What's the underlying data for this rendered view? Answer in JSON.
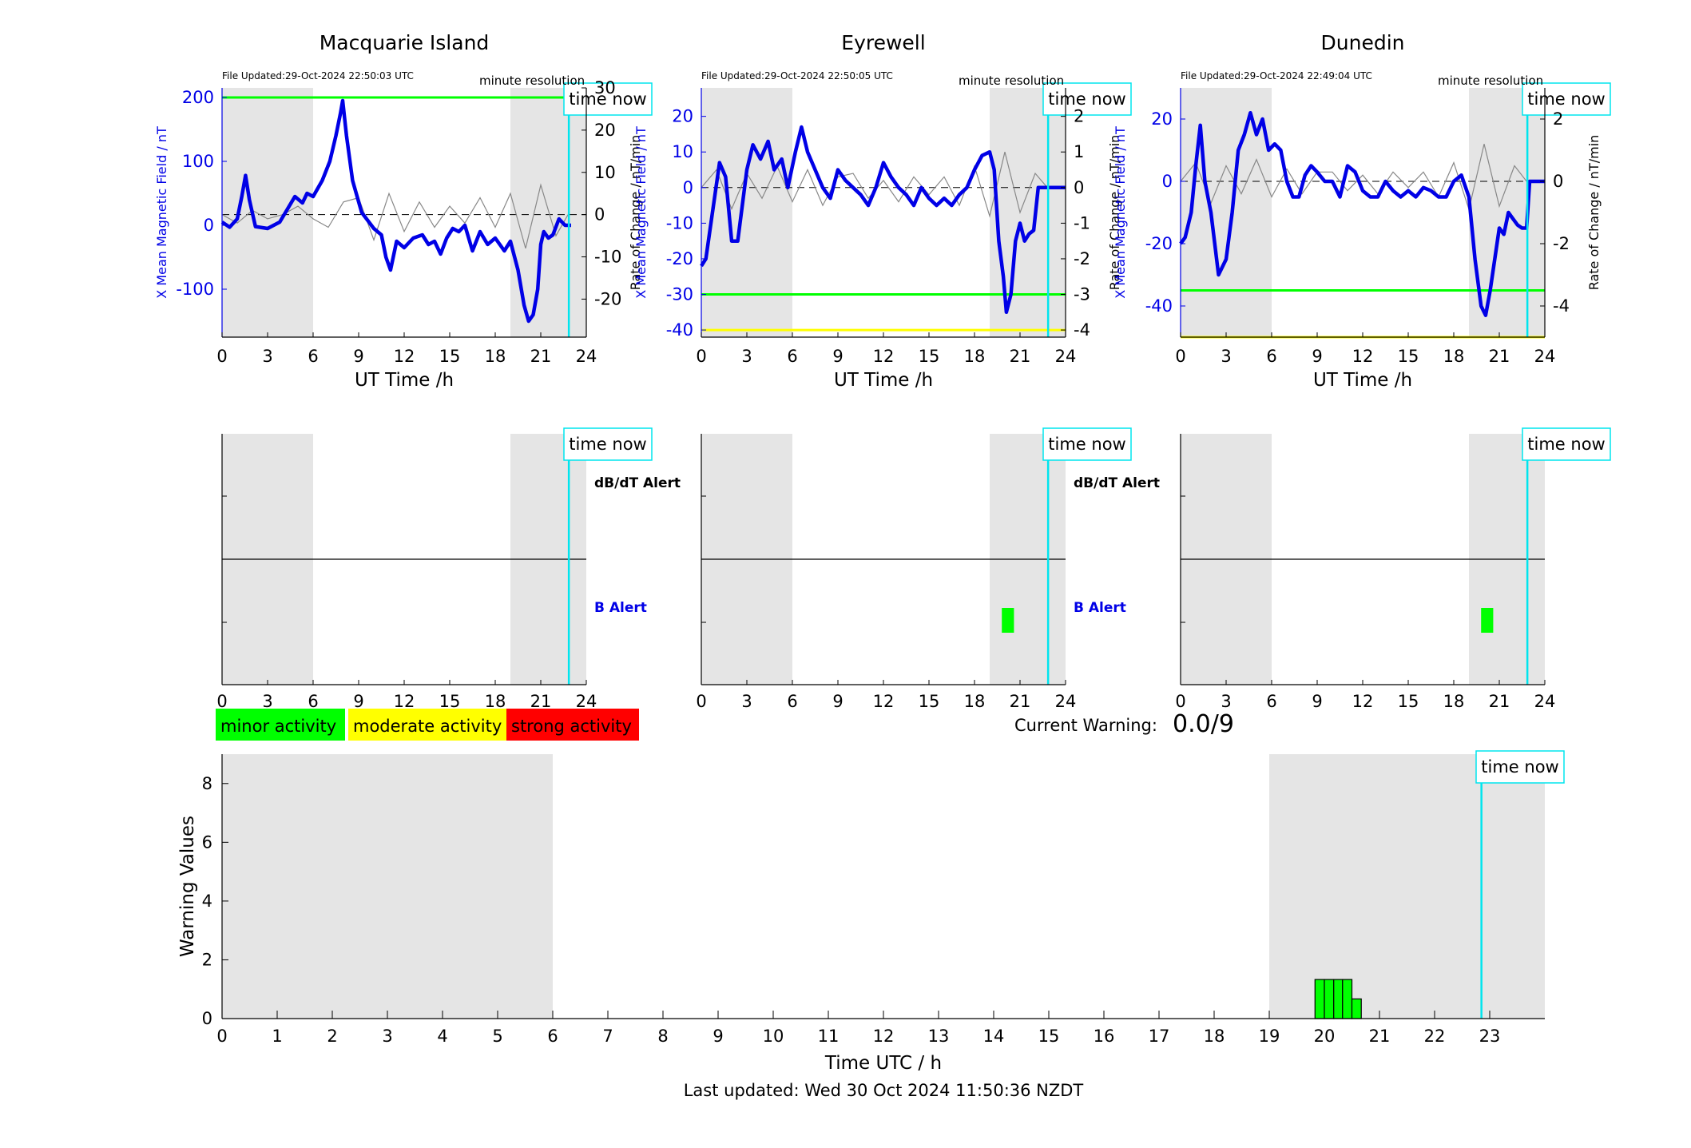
{
  "footer": {
    "last_updated": "Last updated: Wed 30 Oct 2024 11:50:36 NZDT"
  },
  "current_warning": {
    "label": "Current Warning:",
    "value": "0.0/9"
  },
  "legend": [
    {
      "label": "minor activity",
      "color": "#00ff00"
    },
    {
      "label": "moderate activity",
      "color": "#ffff00"
    },
    {
      "label": "strong activity",
      "color": "#ff0000"
    }
  ],
  "colors": {
    "field_line": "#0000e6",
    "rate_line": "#888888",
    "time_now": "#00e5ee",
    "shade": "#e5e5e5",
    "minor": "#00ff00",
    "moderate": "#ffff00"
  },
  "chart_data": [
    {
      "type": "line",
      "station": "Macquarie Island",
      "title": "Macquarie Island",
      "file_updated": "File Updated:29-Oct-2024 22:50:03 UTC",
      "resolution": "minute resolution",
      "xlabel": "UT Time /h",
      "ylabel_left": "X Mean Magnetic Field / nT",
      "ylabel_right": "Rate of Change / nT/min",
      "xlim": [
        0,
        24
      ],
      "xticks": [
        0,
        3,
        6,
        9,
        12,
        15,
        18,
        21,
        24
      ],
      "ylim_left": [
        -175,
        215
      ],
      "yticks_left": [
        -100,
        0,
        100,
        200
      ],
      "ylim_right": [
        -29,
        30
      ],
      "yticks_right": [
        -20,
        -10,
        0,
        10,
        20,
        30
      ],
      "shaded_ranges": [
        [
          0,
          6
        ],
        [
          19,
          24
        ]
      ],
      "time_now": 22.85,
      "time_now_label": "time now",
      "threshold_lines": [
        {
          "value": 200,
          "level": "minor"
        }
      ],
      "field_series": {
        "name": "X Mean Magnetic Field",
        "x": [
          0,
          0.5,
          1.0,
          1.3,
          1.55,
          1.8,
          2.2,
          3,
          3.8,
          4.3,
          4.8,
          5.3,
          5.6,
          6.0,
          6.6,
          7.1,
          7.5,
          7.8,
          7.95,
          8.2,
          8.6,
          9.2,
          10.0,
          10.5,
          10.8,
          11.1,
          11.5,
          12.0,
          12.6,
          13.2,
          13.6,
          14.0,
          14.4,
          14.8,
          15.2,
          15.6,
          16.0,
          16.5,
          17.0,
          17.5,
          18.0,
          18.6,
          19.0,
          19.5,
          19.9,
          20.2,
          20.5,
          20.8,
          21.0,
          21.2,
          21.5,
          21.8,
          22.2,
          22.6,
          23.0
        ],
        "values": [
          5,
          -3,
          10,
          45,
          78,
          40,
          -2,
          -5,
          5,
          25,
          45,
          35,
          50,
          45,
          70,
          100,
          140,
          175,
          195,
          140,
          70,
          20,
          -5,
          -15,
          -50,
          -70,
          -25,
          -35,
          -20,
          -15,
          -30,
          -25,
          -45,
          -20,
          -5,
          -10,
          0,
          -40,
          -10,
          -30,
          -20,
          -40,
          -25,
          -70,
          -125,
          -150,
          -140,
          -100,
          -30,
          -10,
          -20,
          -15,
          10,
          0,
          0
        ]
      },
      "rate_series": {
        "name": "Rate of Change",
        "x": [
          0,
          1,
          2,
          3,
          4,
          5,
          6,
          7,
          8,
          9,
          10,
          11,
          12,
          13,
          14,
          15,
          16,
          17,
          18,
          19,
          20,
          21,
          22,
          22.8
        ],
        "values": [
          0,
          -2,
          1,
          -1,
          0,
          2,
          -1,
          -3,
          3,
          4,
          -6,
          5,
          -4,
          3,
          -3,
          2,
          -2,
          4,
          -3,
          5,
          -8,
          7,
          -5,
          0
        ]
      }
    },
    {
      "type": "line",
      "station": "Eyrewell",
      "title": "Eyrewell",
      "file_updated": "File Updated:29-Oct-2024 22:50:05 UTC",
      "resolution": "minute resolution",
      "xlabel": "UT Time /h",
      "ylabel_left": "X Mean Magnetic Field / nT",
      "ylabel_right": "Rate of Change / nT/min",
      "xlim": [
        0,
        24
      ],
      "xticks": [
        0,
        3,
        6,
        9,
        12,
        15,
        18,
        21,
        24
      ],
      "ylim_left": [
        -42,
        28
      ],
      "yticks_left": [
        -40,
        -30,
        -20,
        -10,
        0,
        10,
        20
      ],
      "ylim_right": [
        -4.2,
        2.8
      ],
      "yticks_right": [
        -4,
        -3,
        -2,
        -1,
        0,
        1,
        2
      ],
      "shaded_ranges": [
        [
          0,
          6
        ],
        [
          19,
          24
        ]
      ],
      "time_now": 22.85,
      "time_now_label": "time now",
      "threshold_lines": [
        {
          "value": -30,
          "level": "minor"
        },
        {
          "value": -40,
          "level": "moderate"
        }
      ],
      "field_series": {
        "name": "X Mean Magnetic Field",
        "x": [
          0,
          0.3,
          0.8,
          1.2,
          1.6,
          2.0,
          2.4,
          3.0,
          3.4,
          3.9,
          4.4,
          4.8,
          5.3,
          5.7,
          6.2,
          6.6,
          7.0,
          7.5,
          8.0,
          8.5,
          9.0,
          9.5,
          10.0,
          10.5,
          11.0,
          11.5,
          12.0,
          12.5,
          13.0,
          13.5,
          14.0,
          14.5,
          15.0,
          15.5,
          16.0,
          16.5,
          17.0,
          17.5,
          18.0,
          18.5,
          19.0,
          19.3,
          19.6,
          19.9,
          20.1,
          20.4,
          20.7,
          21.0,
          21.3,
          21.6,
          21.9,
          22.2,
          22.5,
          22.8,
          23.0,
          24.0
        ],
        "values": [
          -22,
          -20,
          -5,
          7,
          3,
          -15,
          -15,
          5,
          12,
          8,
          13,
          5,
          8,
          0,
          10,
          17,
          10,
          5,
          0,
          -3,
          5,
          2,
          0,
          -2,
          -5,
          0,
          7,
          3,
          0,
          -2,
          -5,
          0,
          -3,
          -5,
          -3,
          -5,
          -2,
          0,
          5,
          9,
          10,
          5,
          -15,
          -25,
          -35,
          -30,
          -15,
          -10,
          -15,
          -13,
          -12,
          0,
          0,
          0,
          0,
          0
        ]
      },
      "rate_series": {
        "name": "Rate of Change",
        "x": [
          0,
          1,
          2,
          3,
          4,
          5,
          6,
          7,
          8,
          9,
          10,
          11,
          12,
          13,
          14,
          15,
          16,
          17,
          18,
          19,
          20,
          21,
          22,
          22.8
        ],
        "values": [
          0,
          0.5,
          -0.6,
          0.4,
          -0.3,
          0.6,
          -0.4,
          0.5,
          -0.5,
          0.3,
          0.4,
          -0.3,
          0.2,
          -0.4,
          0.3,
          -0.2,
          0.3,
          -0.5,
          0.6,
          -0.8,
          1.0,
          -0.7,
          0.4,
          0
        ]
      }
    },
    {
      "type": "line",
      "station": "Dunedin",
      "title": "Dunedin",
      "file_updated": "File Updated:29-Oct-2024 22:49:04 UTC",
      "resolution": "minute resolution",
      "xlabel": "UT Time /h",
      "ylabel_left": "X Mean Magnetic Field / nT",
      "ylabel_right": "Rate of Change / nT/min",
      "xlim": [
        0,
        24
      ],
      "xticks": [
        0,
        3,
        6,
        9,
        12,
        15,
        18,
        21,
        24
      ],
      "ylim_left": [
        -50,
        30
      ],
      "yticks_left": [
        -40,
        -20,
        0,
        20
      ],
      "ylim_right": [
        -5,
        3
      ],
      "yticks_right": [
        -4,
        -2,
        0,
        2
      ],
      "shaded_ranges": [
        [
          0,
          6
        ],
        [
          19,
          24
        ]
      ],
      "time_now": 22.85,
      "time_now_label": "time now",
      "threshold_lines": [
        {
          "value": -35,
          "level": "minor"
        },
        {
          "value": -50,
          "level": "moderate"
        }
      ],
      "field_series": {
        "name": "X Mean Magnetic Field",
        "x": [
          0,
          0.3,
          0.7,
          1.0,
          1.3,
          1.6,
          2.0,
          2.5,
          3.0,
          3.4,
          3.8,
          4.2,
          4.6,
          5.0,
          5.4,
          5.8,
          6.2,
          6.6,
          7.0,
          7.4,
          7.8,
          8.2,
          8.6,
          9.0,
          9.5,
          10.0,
          10.5,
          11.0,
          11.5,
          12.0,
          12.5,
          13.0,
          13.5,
          14.0,
          14.5,
          15.0,
          15.5,
          16.0,
          16.5,
          17.0,
          17.5,
          18.0,
          18.5,
          19.0,
          19.4,
          19.8,
          20.1,
          20.4,
          20.7,
          21.0,
          21.3,
          21.6,
          21.9,
          22.2,
          22.5,
          22.8,
          23.0,
          24.0
        ],
        "values": [
          -20,
          -18,
          -10,
          5,
          18,
          0,
          -10,
          -30,
          -25,
          -10,
          10,
          15,
          22,
          15,
          20,
          10,
          12,
          10,
          0,
          -5,
          -5,
          2,
          5,
          3,
          0,
          0,
          -5,
          5,
          3,
          -3,
          -5,
          -5,
          0,
          -3,
          -5,
          -3,
          -5,
          -2,
          -3,
          -5,
          -5,
          0,
          2,
          -5,
          -25,
          -40,
          -43,
          -35,
          -25,
          -15,
          -17,
          -10,
          -12,
          -14,
          -15,
          -15,
          0,
          0
        ]
      },
      "rate_series": {
        "name": "Rate of Change",
        "x": [
          0,
          1,
          2,
          3,
          4,
          5,
          6,
          7,
          8,
          9,
          10,
          11,
          12,
          13,
          14,
          15,
          16,
          17,
          18,
          19,
          20,
          21,
          22,
          22.8
        ],
        "values": [
          0,
          0.6,
          -0.7,
          0.5,
          -0.4,
          0.7,
          -0.5,
          0.4,
          -0.4,
          0.3,
          0.3,
          -0.3,
          0.2,
          -0.4,
          0.3,
          -0.2,
          0.3,
          -0.5,
          0.6,
          -0.9,
          1.2,
          -0.8,
          0.5,
          0
        ]
      }
    },
    {
      "type": "bar",
      "station": "Macquarie Island",
      "labels": {
        "top": "dB/dT Alert",
        "bottom": "B Alert"
      },
      "xlim": [
        0,
        24
      ],
      "xticks": [
        0,
        3,
        6,
        9,
        12,
        15,
        18,
        21,
        24
      ],
      "shaded_ranges": [
        [
          0,
          6
        ],
        [
          19,
          24
        ]
      ],
      "time_now": 22.85,
      "time_now_label": "time now",
      "alerts": []
    },
    {
      "type": "bar",
      "station": "Eyrewell",
      "labels": {
        "top": "dB/dT Alert",
        "bottom": "B Alert"
      },
      "xlim": [
        0,
        24
      ],
      "xticks": [
        0,
        3,
        6,
        9,
        12,
        15,
        18,
        21,
        24
      ],
      "shaded_ranges": [
        [
          0,
          6
        ],
        [
          19,
          24
        ]
      ],
      "time_now": 22.85,
      "time_now_label": "time now",
      "alerts": [
        {
          "row": "B Alert",
          "start": 19.8,
          "end": 20.6,
          "level": "minor"
        }
      ]
    },
    {
      "type": "bar",
      "station": "Dunedin",
      "labels": {
        "top": "",
        "bottom": ""
      },
      "xlim": [
        0,
        24
      ],
      "xticks": [
        0,
        3,
        6,
        9,
        12,
        15,
        18,
        21,
        24
      ],
      "shaded_ranges": [
        [
          0,
          6
        ],
        [
          19,
          24
        ]
      ],
      "time_now": 22.85,
      "time_now_label": "time now",
      "alerts": [
        {
          "row": "B Alert",
          "start": 19.8,
          "end": 20.6,
          "level": "minor"
        }
      ]
    },
    {
      "type": "bar",
      "station": "Combined",
      "xlabel": "Time UTC / h",
      "ylabel": "Warning Values",
      "xlim": [
        0,
        24
      ],
      "xticks": [
        0,
        1,
        2,
        3,
        4,
        5,
        6,
        7,
        8,
        9,
        10,
        11,
        12,
        13,
        14,
        15,
        16,
        17,
        18,
        19,
        20,
        21,
        22,
        23
      ],
      "ylim": [
        0,
        9
      ],
      "yticks": [
        0,
        2,
        4,
        6,
        8
      ],
      "shaded_ranges": [
        [
          0,
          6
        ],
        [
          19,
          24
        ]
      ],
      "time_now": 22.85,
      "time_now_label": "time now",
      "bars": [
        {
          "start": 19.83,
          "end": 20.0,
          "value": 1.33
        },
        {
          "start": 20.0,
          "end": 20.17,
          "value": 1.33
        },
        {
          "start": 20.17,
          "end": 20.33,
          "value": 1.33
        },
        {
          "start": 20.33,
          "end": 20.5,
          "value": 1.33
        },
        {
          "start": 20.5,
          "end": 20.67,
          "value": 0.67
        }
      ]
    }
  ]
}
